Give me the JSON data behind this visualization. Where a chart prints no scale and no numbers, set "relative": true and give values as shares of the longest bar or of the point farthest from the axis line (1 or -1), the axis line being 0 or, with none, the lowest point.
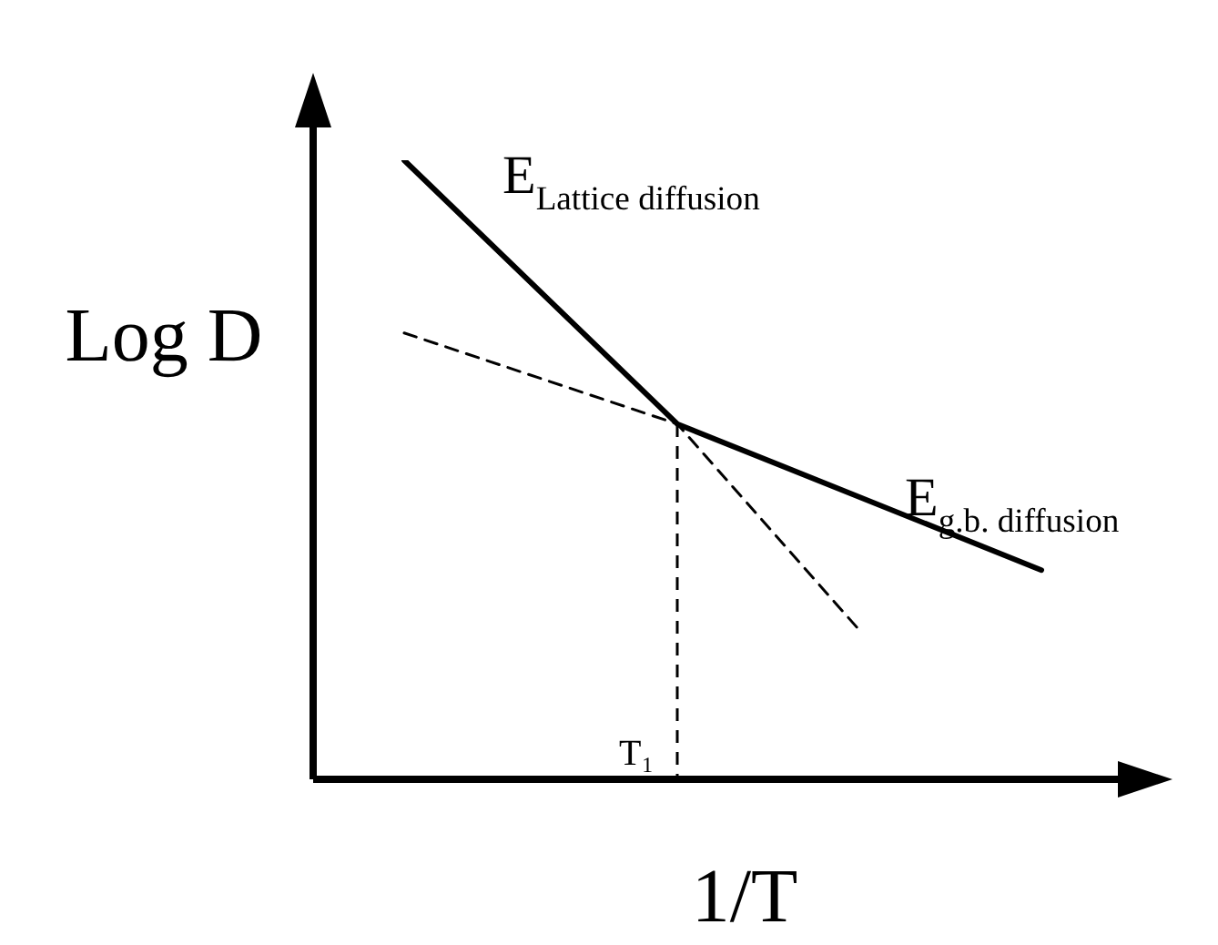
{
  "chart_data": {
    "type": "line",
    "relative": true,
    "xlabel": "1/T",
    "ylabel": "Log D",
    "categories": [
      null,
      null,
      null,
      null,
      null,
      null,
      null,
      null,
      null,
      null
    ],
    "series": [
      {
        "color": "#000000",
        "line_style": "solid",
        "values": [
          null,
          1,
          null,
          null,
          0.574,
          null,
          null,
          null,
          0.338,
          null
        ]
      },
      {
        "color": "#000000",
        "line_style": "dashed",
        "values": [
          null,
          0.721,
          null,
          null,
          0.574,
          null,
          0.241,
          null,
          null,
          null
        ]
      }
    ],
    "annotations": [
      "E$_{Lattice diffusion}$",
      "E$_{g.b. diffusion}$",
      "T₁"
    ],
    "marker": "none",
    "tick_labels": false
  }
}
